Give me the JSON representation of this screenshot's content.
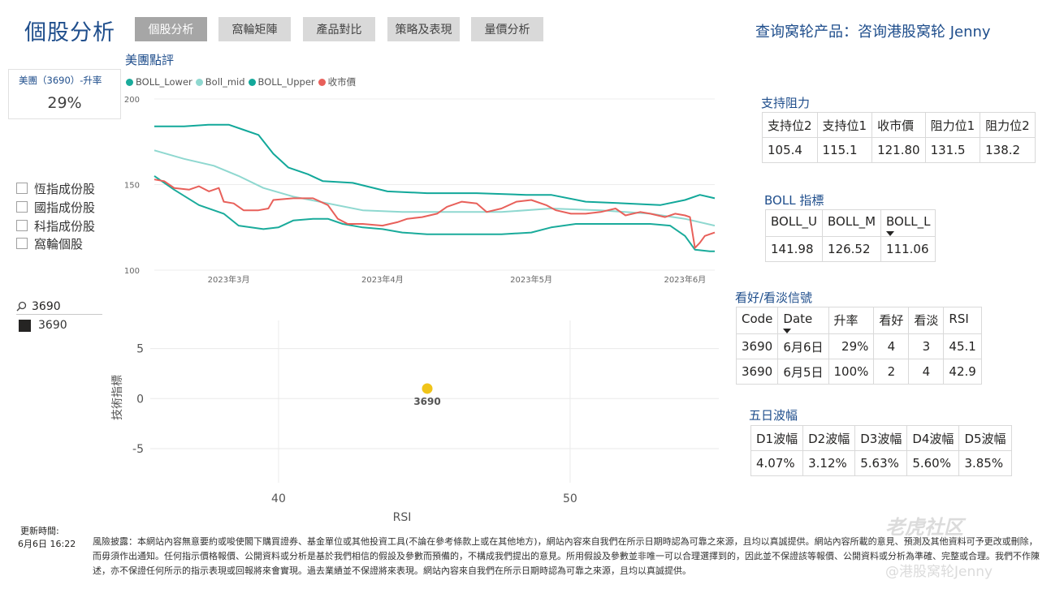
{
  "header": {
    "title": "個股分析",
    "query_title": "查询窝轮产品：咨询港股窝轮 Jenny",
    "tabs": [
      {
        "label": "個股分析",
        "active": true
      },
      {
        "label": "窩輪矩陣",
        "active": false
      },
      {
        "label": "產品對比",
        "active": false
      },
      {
        "label": "策略及表現",
        "active": false
      },
      {
        "label": "量價分析",
        "active": false
      }
    ]
  },
  "kpi": {
    "label": "美團（3690）-升率",
    "value": "29%"
  },
  "filters": {
    "checkboxes": [
      "恆指成份股",
      "國指成份股",
      "科指成份股",
      "窩輪個股"
    ],
    "search_value": "3690",
    "selected_item": "3690"
  },
  "boll_chart_title": "美團點評",
  "chart_data": [
    {
      "type": "line",
      "title": "美團點評",
      "ylim": [
        100,
        200
      ],
      "y_ticks": [
        "200",
        "150",
        "100"
      ],
      "x_ticks": [
        "2023年3月",
        "2023年4月",
        "2023年5月",
        "2023年6月"
      ],
      "x_range": [
        "2023-02-14",
        "2023-06-07"
      ],
      "legend_position": "top-left",
      "series": [
        {
          "name": "BOLL_Lower",
          "color": "#1aab9b",
          "points": [
            [
              "2023-02-14",
              155
            ],
            [
              "2023-02-18",
              147
            ],
            [
              "2023-02-23",
              138
            ],
            [
              "2023-02-28",
              133
            ],
            [
              "2023-03-03",
              126
            ],
            [
              "2023-03-08",
              124
            ],
            [
              "2023-03-11",
              125
            ],
            [
              "2023-03-14",
              129
            ],
            [
              "2023-03-18",
              130
            ],
            [
              "2023-03-21",
              130
            ],
            [
              "2023-03-24",
              127
            ],
            [
              "2023-03-28",
              125
            ],
            [
              "2023-04-01",
              124
            ],
            [
              "2023-04-05",
              122
            ],
            [
              "2023-04-10",
              121
            ],
            [
              "2023-04-15",
              121
            ],
            [
              "2023-04-20",
              121
            ],
            [
              "2023-04-25",
              121
            ],
            [
              "2023-05-01",
              122
            ],
            [
              "2023-05-05",
              125
            ],
            [
              "2023-05-10",
              127
            ],
            [
              "2023-05-15",
              127
            ],
            [
              "2023-05-20",
              127
            ],
            [
              "2023-05-25",
              127
            ],
            [
              "2023-05-29",
              126
            ],
            [
              "2023-06-01",
              120
            ],
            [
              "2023-06-03",
              112
            ],
            [
              "2023-06-06",
              111
            ],
            [
              "2023-06-07",
              111
            ]
          ]
        },
        {
          "name": "Boll_mid",
          "color": "#8fd8d0",
          "points": [
            [
              "2023-02-14",
              170
            ],
            [
              "2023-02-20",
              165
            ],
            [
              "2023-02-26",
              161
            ],
            [
              "2023-03-03",
              155
            ],
            [
              "2023-03-08",
              148
            ],
            [
              "2023-03-14",
              143
            ],
            [
              "2023-03-21",
              139
            ],
            [
              "2023-03-28",
              135
            ],
            [
              "2023-04-05",
              134
            ],
            [
              "2023-04-15",
              134
            ],
            [
              "2023-04-25",
              134
            ],
            [
              "2023-05-05",
              136
            ],
            [
              "2023-05-15",
              135
            ],
            [
              "2023-05-25",
              133
            ],
            [
              "2023-06-01",
              130
            ],
            [
              "2023-06-07",
              126
            ]
          ]
        },
        {
          "name": "BOLL_Upper",
          "color": "#12a89a",
          "points": [
            [
              "2023-02-14",
              184
            ],
            [
              "2023-02-20",
              184
            ],
            [
              "2023-02-25",
              185
            ],
            [
              "2023-03-01",
              185
            ],
            [
              "2023-03-04",
              182
            ],
            [
              "2023-03-07",
              179
            ],
            [
              "2023-03-10",
              168
            ],
            [
              "2023-03-13",
              160
            ],
            [
              "2023-03-17",
              156
            ],
            [
              "2023-03-20",
              152
            ],
            [
              "2023-03-26",
              151
            ],
            [
              "2023-04-02",
              146
            ],
            [
              "2023-04-10",
              145
            ],
            [
              "2023-04-20",
              145
            ],
            [
              "2023-04-30",
              144
            ],
            [
              "2023-05-05",
              144
            ],
            [
              "2023-05-12",
              140
            ],
            [
              "2023-05-20",
              139
            ],
            [
              "2023-05-27",
              138
            ],
            [
              "2023-06-01",
              141
            ],
            [
              "2023-06-04",
              144
            ],
            [
              "2023-06-07",
              142
            ]
          ]
        },
        {
          "name": "收市價",
          "color": "#e8605a",
          "points": [
            [
              "2023-02-14",
              153
            ],
            [
              "2023-02-16",
              152
            ],
            [
              "2023-02-18",
              148
            ],
            [
              "2023-02-21",
              147
            ],
            [
              "2023-02-23",
              149
            ],
            [
              "2023-02-25",
              146
            ],
            [
              "2023-02-27",
              148
            ],
            [
              "2023-02-28",
              140
            ],
            [
              "2023-03-02",
              139
            ],
            [
              "2023-03-04",
              135
            ],
            [
              "2023-03-07",
              135
            ],
            [
              "2023-03-09",
              136
            ],
            [
              "2023-03-10",
              141
            ],
            [
              "2023-03-14",
              142
            ],
            [
              "2023-03-18",
              142
            ],
            [
              "2023-03-21",
              138
            ],
            [
              "2023-03-23",
              130
            ],
            [
              "2023-03-25",
              127
            ],
            [
              "2023-03-28",
              127
            ],
            [
              "2023-04-01",
              126
            ],
            [
              "2023-04-04",
              128
            ],
            [
              "2023-04-06",
              130
            ],
            [
              "2023-04-09",
              131
            ],
            [
              "2023-04-12",
              133
            ],
            [
              "2023-04-14",
              137
            ],
            [
              "2023-04-17",
              140
            ],
            [
              "2023-04-20",
              139
            ],
            [
              "2023-04-22",
              134
            ],
            [
              "2023-04-25",
              136
            ],
            [
              "2023-04-28",
              140
            ],
            [
              "2023-05-01",
              141
            ],
            [
              "2023-05-04",
              138
            ],
            [
              "2023-05-06",
              135
            ],
            [
              "2023-05-09",
              133
            ],
            [
              "2023-05-12",
              133
            ],
            [
              "2023-05-15",
              134
            ],
            [
              "2023-05-18",
              136
            ],
            [
              "2023-05-20",
              132
            ],
            [
              "2023-05-23",
              134
            ],
            [
              "2023-05-25",
              133
            ],
            [
              "2023-05-28",
              131
            ],
            [
              "2023-05-30",
              133
            ],
            [
              "2023-06-01",
              132
            ],
            [
              "2023-06-02",
              131
            ],
            [
              "2023-06-03",
              113
            ],
            [
              "2023-06-04",
              116
            ],
            [
              "2023-06-05",
              120
            ],
            [
              "2023-06-07",
              122
            ]
          ]
        }
      ]
    },
    {
      "type": "scatter",
      "xlabel": "RSI",
      "ylabel": "技術指標",
      "xlim": [
        35.6,
        55.1
      ],
      "ylim": [
        -8.4,
        7.8
      ],
      "x_ticks": [
        "40",
        "50"
      ],
      "y_ticks": [
        "5",
        "0",
        "-5"
      ],
      "points": [
        {
          "label": "3690",
          "x": 45.1,
          "y": 1.0,
          "color": "#f0c419"
        }
      ]
    }
  ],
  "support_resistance": {
    "title": "支持阻力",
    "headers": [
      "支持位2",
      "支持位1",
      "收市價",
      "阻力位1",
      "阻力位2"
    ],
    "values": [
      "105.4",
      "115.1",
      "121.80",
      "131.5",
      "138.2"
    ]
  },
  "boll_indicator": {
    "title": "BOLL 指標",
    "headers": [
      "BOLL_U",
      "BOLL_M",
      "BOLL_L"
    ],
    "values": [
      "141.98",
      "126.52",
      "111.06"
    ]
  },
  "signals": {
    "title": "看好/看淡信號",
    "headers": [
      "Code",
      "Date",
      "升率",
      "看好",
      "看淡",
      "RSI"
    ],
    "rows": [
      [
        "3690",
        "6月6日",
        "29%",
        "4",
        "3",
        "45.1"
      ],
      [
        "3690",
        "6月5日",
        "100%",
        "2",
        "4",
        "42.9"
      ]
    ]
  },
  "five_day": {
    "title": "五日波幅",
    "headers": [
      "D1波幅",
      "D2波幅",
      "D3波幅",
      "D4波幅",
      "D5波幅"
    ],
    "values": [
      "4.07%",
      "3.12%",
      "5.63%",
      "5.60%",
      "3.85%"
    ]
  },
  "footer": {
    "update_label": "更新時間:",
    "update_time": "6月6日 16:22",
    "disclaimer": "風險披露：本網站內容無意要約或唆使閣下購買證券、基金單位或其他投資工具(不論在參考條款上或在其他地方)，網站內容來自我們在所示日期時認為可靠之來源，且均以真誠提供。網站內容所載的意見、預測及其他資料可予更改或刪除，而毋須作出通知。任何指示價格報價、公開資料或分析是基於我們相信的假設及參數而預備的，不構成我們提出的意見。所用假設及參數並非唯一可以合理選擇到的，因此並不保證該等報價、公開資料或分析為準確、完整或合理。我們不作陳述，亦不保證任何所示的指示表現或回報將來會實現。過去業績並不保證將來表現。網站內容來自我們在所示日期時認為可靠之來源，且均以真誠提供。"
  },
  "watermark": {
    "line1": "老虎社区",
    "line2": "@港股窝轮Jenny"
  }
}
